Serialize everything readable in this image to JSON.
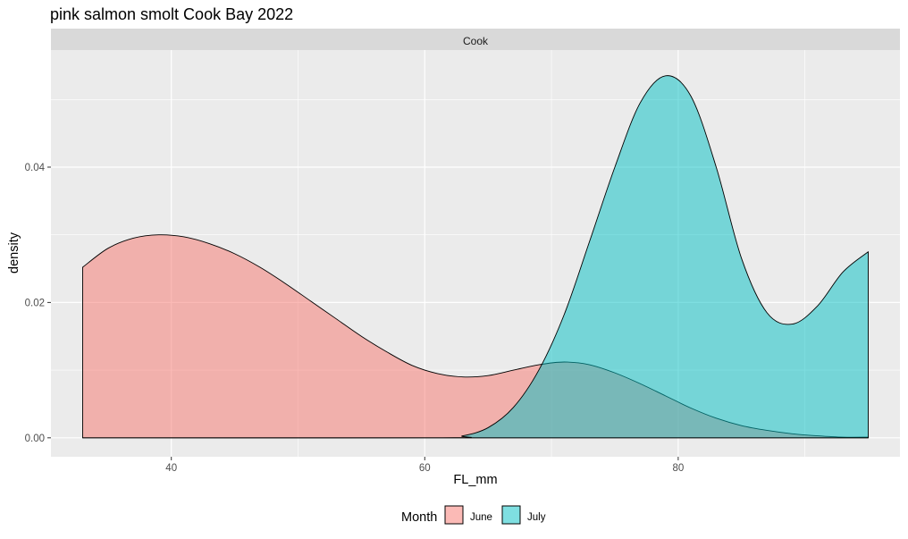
{
  "chart_data": {
    "type": "area",
    "title": "pink salmon smolt Cook Bay 2022",
    "facet_label": "Cook",
    "xlabel": "FL_mm",
    "ylabel": "density",
    "xlim": [
      30.5,
      97.5
    ],
    "ylim": [
      -0.0028,
      0.0573
    ],
    "x_ticks": [
      40,
      60,
      80
    ],
    "y_ticks": [
      0.0,
      0.02,
      0.04
    ],
    "y_tick_labels": [
      "0.00",
      "0.02",
      "0.04"
    ],
    "grid": true,
    "legend": {
      "title": "Month",
      "position": "bottom",
      "entries": [
        "June",
        "July"
      ]
    },
    "series": [
      {
        "name": "June",
        "color": "#F8766D",
        "x": [
          33,
          35,
          37,
          39,
          41,
          43,
          45,
          47,
          49,
          51,
          53,
          55,
          57,
          59,
          61,
          63,
          65,
          67,
          69,
          71,
          73,
          75,
          77,
          79,
          81,
          83,
          85,
          87,
          89,
          91,
          93,
          95
        ],
        "y": [
          0.0252,
          0.028,
          0.0295,
          0.03,
          0.0297,
          0.0287,
          0.0272,
          0.0252,
          0.0228,
          0.0202,
          0.0176,
          0.015,
          0.0127,
          0.0107,
          0.0095,
          0.009,
          0.0092,
          0.01,
          0.0108,
          0.0112,
          0.0108,
          0.0096,
          0.008,
          0.0062,
          0.0044,
          0.0029,
          0.0018,
          0.0011,
          0.0006,
          0.0003,
          0.0001,
          0.0001
        ]
      },
      {
        "name": "July",
        "color": "#00BFC4",
        "x": [
          33,
          61,
          63,
          65,
          67,
          69,
          71,
          73,
          75,
          77,
          79,
          81,
          83,
          85,
          87,
          89,
          91,
          93,
          95
        ],
        "y": [
          0.0,
          0.0,
          0.0003,
          0.0015,
          0.0045,
          0.01,
          0.0182,
          0.029,
          0.04,
          0.0495,
          0.0535,
          0.0505,
          0.04,
          0.0265,
          0.0185,
          0.0168,
          0.0195,
          0.0245,
          0.0275
        ]
      }
    ]
  }
}
